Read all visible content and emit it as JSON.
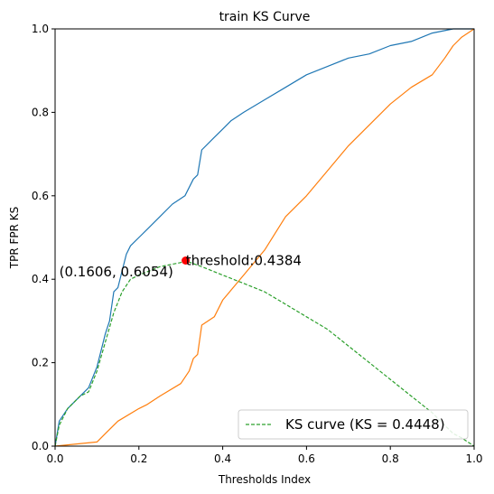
{
  "chart_data": {
    "type": "line",
    "title": "train KS Curve",
    "xlabel": "Thresholds Index",
    "ylabel": "TPR FPR KS",
    "xlim": [
      0,
      1
    ],
    "ylim": [
      0,
      1
    ],
    "x_ticks": [
      "0.0",
      "0.2",
      "0.4",
      "0.6",
      "0.8",
      "1.0"
    ],
    "y_ticks": [
      "0.0",
      "0.2",
      "0.4",
      "0.6",
      "0.8",
      "1.0"
    ],
    "grid": false,
    "legend": {
      "placement": "lower-right",
      "entries": [
        "KS curve (KS = 0.4448)"
      ]
    },
    "series": [
      {
        "name": "",
        "color": "#1f77b4",
        "style": "solid",
        "x": [
          0.0,
          0.01,
          0.03,
          0.06,
          0.08,
          0.1,
          0.12,
          0.13,
          0.14,
          0.15,
          0.16,
          0.17,
          0.18,
          0.2,
          0.22,
          0.25,
          0.28,
          0.31,
          0.33,
          0.34,
          0.35,
          0.38,
          0.4,
          0.42,
          0.45,
          0.5,
          0.55,
          0.6,
          0.65,
          0.7,
          0.75,
          0.8,
          0.85,
          0.9,
          0.95,
          1.0
        ],
        "y": [
          0.0,
          0.06,
          0.09,
          0.12,
          0.14,
          0.19,
          0.27,
          0.3,
          0.37,
          0.38,
          0.42,
          0.46,
          0.48,
          0.5,
          0.52,
          0.55,
          0.58,
          0.6,
          0.64,
          0.65,
          0.71,
          0.74,
          0.76,
          0.78,
          0.8,
          0.83,
          0.86,
          0.89,
          0.91,
          0.93,
          0.94,
          0.96,
          0.97,
          0.99,
          1.0,
          1.0
        ]
      },
      {
        "name": "",
        "color": "#ff7f0e",
        "style": "solid",
        "x": [
          0.0,
          0.1,
          0.12,
          0.15,
          0.2,
          0.22,
          0.25,
          0.3,
          0.32,
          0.33,
          0.34,
          0.35,
          0.38,
          0.4,
          0.45,
          0.5,
          0.55,
          0.6,
          0.65,
          0.7,
          0.75,
          0.8,
          0.85,
          0.9,
          0.93,
          0.95,
          0.97,
          1.0
        ],
        "y": [
          0.0,
          0.01,
          0.03,
          0.06,
          0.09,
          0.1,
          0.12,
          0.15,
          0.18,
          0.21,
          0.22,
          0.29,
          0.31,
          0.35,
          0.41,
          0.47,
          0.55,
          0.6,
          0.66,
          0.72,
          0.77,
          0.82,
          0.86,
          0.89,
          0.93,
          0.96,
          0.98,
          1.0
        ]
      },
      {
        "name": "KS curve (KS = 0.4448)",
        "color": "#2ca02c",
        "style": "dashed",
        "x": [
          0.0,
          0.01,
          0.03,
          0.06,
          0.08,
          0.1,
          0.12,
          0.14,
          0.16,
          0.18,
          0.2,
          0.25,
          0.3,
          0.31,
          0.35,
          0.4,
          0.45,
          0.5,
          0.55,
          0.6,
          0.65,
          0.7,
          0.75,
          0.8,
          0.85,
          0.9,
          0.93,
          0.95,
          0.97,
          1.0
        ],
        "y": [
          0.0,
          0.05,
          0.09,
          0.12,
          0.13,
          0.18,
          0.25,
          0.32,
          0.37,
          0.4,
          0.41,
          0.43,
          0.44,
          0.4448,
          0.43,
          0.41,
          0.39,
          0.37,
          0.34,
          0.31,
          0.28,
          0.24,
          0.2,
          0.16,
          0.12,
          0.08,
          0.05,
          0.03,
          0.02,
          0.0
        ]
      }
    ],
    "marker": {
      "x": 0.3116,
      "y": 0.4448,
      "color": "#ff0000"
    },
    "annotations": [
      {
        "text": "threshold:0.4384",
        "x": 0.312,
        "y": 0.445
      },
      {
        "text": "(0.1606, 0.6054)",
        "x": 0.01,
        "y": 0.418
      }
    ]
  }
}
